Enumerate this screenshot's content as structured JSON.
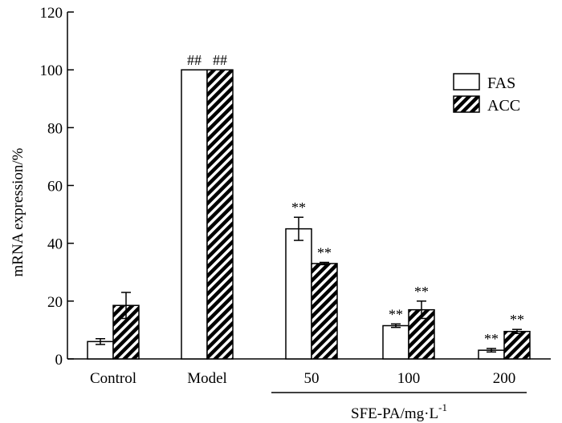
{
  "chart_data": {
    "type": "bar",
    "title": "",
    "ylabel": "mRNA expression/%",
    "xlabel": "",
    "ylim": [
      0,
      120
    ],
    "yticks": [
      0,
      20,
      40,
      60,
      80,
      100,
      120
    ],
    "grid": false,
    "legend_position": "top-right",
    "categories": [
      "Control",
      "Model",
      "50",
      "100",
      "200"
    ],
    "group_label": {
      "main": "SFE-PA/mg·L",
      "sup": "-1"
    },
    "series": [
      {
        "name": "FAS",
        "fill": "white",
        "values": [
          6,
          100,
          45,
          11.5,
          3
        ],
        "errors": [
          1.0,
          0,
          4.0,
          0.6,
          0.6
        ],
        "markers": [
          "",
          "##",
          "**",
          "**",
          "**"
        ]
      },
      {
        "name": "ACC",
        "fill": "hatched",
        "values": [
          18.5,
          100,
          33,
          17,
          9.5
        ],
        "errors": [
          4.5,
          0,
          0.4,
          3.0,
          0.7
        ],
        "markers": [
          "",
          "##",
          "**",
          "**",
          "**"
        ]
      }
    ]
  }
}
